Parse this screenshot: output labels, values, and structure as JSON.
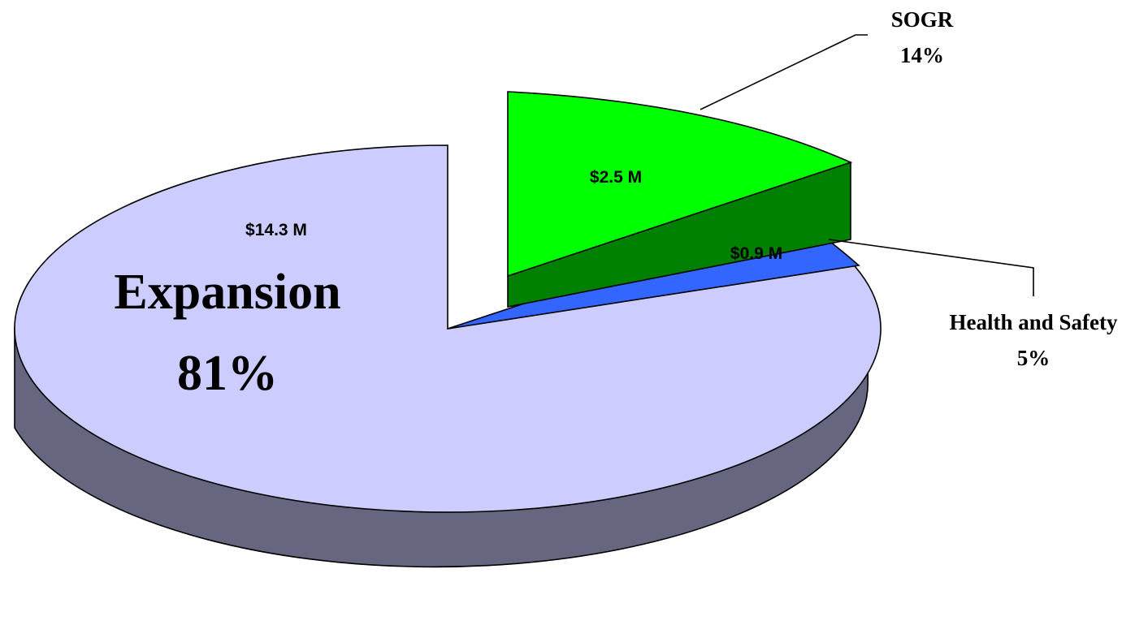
{
  "chart_data": {
    "type": "pie",
    "style": "3d-exploded",
    "title": "",
    "legend": "none",
    "slices": [
      {
        "label": "SOGR",
        "percent_label": "14%",
        "percent": 14,
        "value_label": "$2.5 M",
        "value": 2.5,
        "top_color": "#00ff00",
        "side_color": "#008000",
        "exploded": true
      },
      {
        "label": "Health and Safety",
        "percent_label": "5%",
        "percent": 5,
        "value_label": "$0.9 M",
        "value": 0.9,
        "top_color": "#3366ff",
        "side_color": "#1a3399",
        "exploded": false
      },
      {
        "label": "Expansion",
        "percent_label": "81%",
        "percent": 81,
        "value_label": "$14.3 M",
        "value": 14.3,
        "top_color": "#ccccff",
        "side_color": "#666680",
        "exploded": false
      }
    ]
  }
}
